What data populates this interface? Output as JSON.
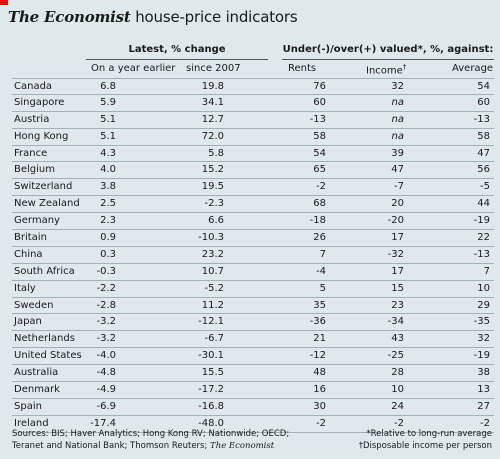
{
  "title": {
    "brand": "The Economist",
    "rest": " house-price indicators"
  },
  "groups": {
    "latest": "Latest, % change",
    "valued": "Under(-)/over(+) valued*, %, against:"
  },
  "columns": {
    "year": "On a year earlier",
    "since": "since 2007",
    "rents": "Rents",
    "income": "Income",
    "income_mark": "†",
    "average": "Average"
  },
  "rows": [
    {
      "country": "Canada",
      "year": "6.8",
      "since": "19.8",
      "rents": "76",
      "income": "32",
      "average": "54"
    },
    {
      "country": "Singapore",
      "year": "5.9",
      "since": "34.1",
      "rents": "60",
      "income": "na",
      "average": "60"
    },
    {
      "country": "Austria",
      "year": "5.1",
      "since": "12.7",
      "rents": "-13",
      "income": "na",
      "average": "-13"
    },
    {
      "country": "Hong Kong",
      "year": "5.1",
      "since": "72.0",
      "rents": "58",
      "income": "na",
      "average": "58"
    },
    {
      "country": "France",
      "year": "4.3",
      "since": "5.8",
      "rents": "54",
      "income": "39",
      "average": "47"
    },
    {
      "country": "Belgium",
      "year": "4.0",
      "since": "15.2",
      "rents": "65",
      "income": "47",
      "average": "56"
    },
    {
      "country": "Switzerland",
      "year": "3.8",
      "since": "19.5",
      "rents": "-2",
      "income": "-7",
      "average": "-5"
    },
    {
      "country": "New Zealand",
      "year": "2.5",
      "since": "-2.3",
      "rents": "68",
      "income": "20",
      "average": "44"
    },
    {
      "country": "Germany",
      "year": "2.3",
      "since": "6.6",
      "rents": "-18",
      "income": "-20",
      "average": "-19"
    },
    {
      "country": "Britain",
      "year": "0.9",
      "since": "-10.3",
      "rents": "26",
      "income": "17",
      "average": "22"
    },
    {
      "country": "China",
      "year": "0.3",
      "since": "23.2",
      "rents": "7",
      "income": "-32",
      "average": "-13"
    },
    {
      "country": "South Africa",
      "year": "-0.3",
      "since": "10.7",
      "rents": "-4",
      "income": "17",
      "average": "7"
    },
    {
      "country": "Italy",
      "year": "-2.2",
      "since": "-5.2",
      "rents": "5",
      "income": "15",
      "average": "10"
    },
    {
      "country": "Sweden",
      "year": "-2.8",
      "since": "11.2",
      "rents": "35",
      "income": "23",
      "average": "29"
    },
    {
      "country": "Japan",
      "year": "-3.2",
      "since": "-12.1",
      "rents": "-36",
      "income": "-34",
      "average": "-35"
    },
    {
      "country": "Netherlands",
      "year": "-3.2",
      "since": "-6.7",
      "rents": "21",
      "income": "43",
      "average": "32"
    },
    {
      "country": "United States",
      "year": "-4.0",
      "since": "-30.1",
      "rents": "-12",
      "income": "-25",
      "average": "-19"
    },
    {
      "country": "Australia",
      "year": "-4.8",
      "since": "15.5",
      "rents": "48",
      "income": "28",
      "average": "38"
    },
    {
      "country": "Denmark",
      "year": "-4.9",
      "since": "-17.2",
      "rents": "16",
      "income": "10",
      "average": "13"
    },
    {
      "country": "Spain",
      "year": "-6.9",
      "since": "-16.8",
      "rents": "30",
      "income": "24",
      "average": "27"
    },
    {
      "country": "Ireland",
      "year": "-17.4",
      "since": "-48.0",
      "rents": "-2",
      "income": "-2",
      "average": "-2"
    }
  ],
  "footer": {
    "sources_line1": "Sources: BIS; Haver Analytics; Hong Kong RV; Nationwide; OECD;",
    "sources_line2": "Teranet and National Bank; Thomson Reuters; ",
    "sources_brand": "The Economist",
    "note1": "*Relative to long-run average",
    "note2": "†Disposable income per person"
  },
  "colors": {
    "background": "#dfe8ec",
    "accent": "#e3120b"
  }
}
